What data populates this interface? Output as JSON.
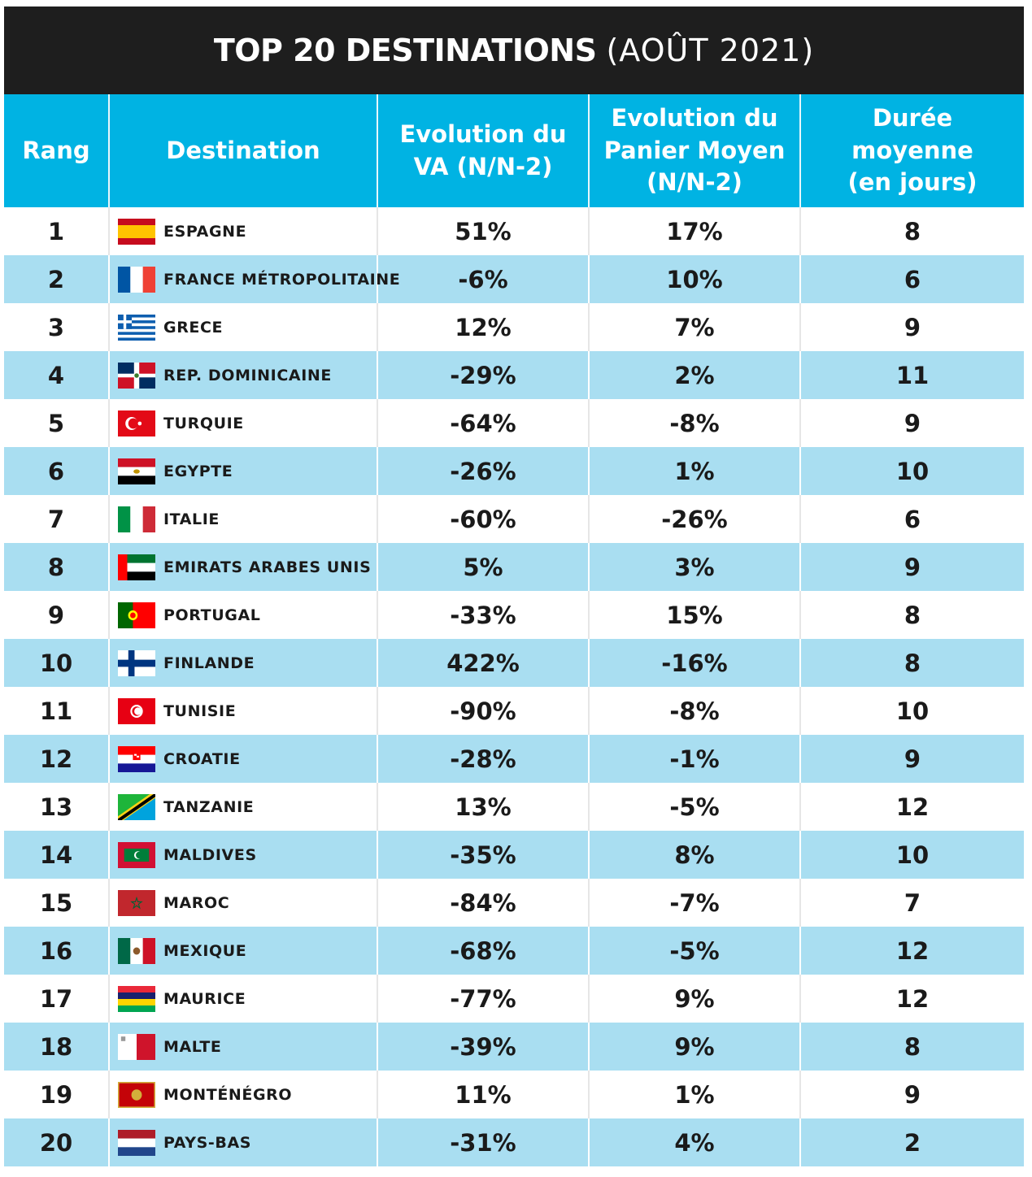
{
  "title": {
    "strong": "TOP 20 DESTINATIONS",
    "light": "(AOÛT 2021)"
  },
  "columns": [
    "Rang",
    "Destination",
    "Evolution du VA (N/N-2)",
    "Evolution du Panier Moyen (N/N-2)",
    "Durée moyenne (en jours)"
  ],
  "chart_data": {
    "type": "table",
    "title": "TOP 20 DESTINATIONS (AOÛT 2021)",
    "columns": [
      "Rang",
      "Destination",
      "Evolution du VA (N/N-2)",
      "Evolution du Panier Moyen (N/N-2)",
      "Durée moyenne (en jours)"
    ],
    "rows": [
      {
        "rang": "1",
        "destination": "ESPAGNE",
        "flag": "spain-flag-icon",
        "va": "51%",
        "panier": "17%",
        "duree": "8"
      },
      {
        "rang": "2",
        "destination": "FRANCE MÉTROPOLITAINE",
        "flag": "france-flag-icon",
        "va": "-6%",
        "panier": "10%",
        "duree": "6"
      },
      {
        "rang": "3",
        "destination": "GRECE",
        "flag": "greece-flag-icon",
        "va": "12%",
        "panier": "7%",
        "duree": "9"
      },
      {
        "rang": "4",
        "destination": "REP. DOMINICAINE",
        "flag": "dominican-republic-flag-icon",
        "va": "-29%",
        "panier": "2%",
        "duree": "11"
      },
      {
        "rang": "5",
        "destination": "TURQUIE",
        "flag": "turkey-flag-icon",
        "va": "-64%",
        "panier": "-8%",
        "duree": "9"
      },
      {
        "rang": "6",
        "destination": "EGYPTE",
        "flag": "egypt-flag-icon",
        "va": "-26%",
        "panier": "1%",
        "duree": "10"
      },
      {
        "rang": "7",
        "destination": "ITALIE",
        "flag": "italy-flag-icon",
        "va": "-60%",
        "panier": "-26%",
        "duree": "6"
      },
      {
        "rang": "8",
        "destination": "EMIRATS ARABES UNIS",
        "flag": "uae-flag-icon",
        "va": "5%",
        "panier": "3%",
        "duree": "9"
      },
      {
        "rang": "9",
        "destination": "PORTUGAL",
        "flag": "portugal-flag-icon",
        "va": "-33%",
        "panier": "15%",
        "duree": "8"
      },
      {
        "rang": "10",
        "destination": "FINLANDE",
        "flag": "finland-flag-icon",
        "va": "422%",
        "panier": "-16%",
        "duree": "8"
      },
      {
        "rang": "11",
        "destination": "TUNISIE",
        "flag": "tunisia-flag-icon",
        "va": "-90%",
        "panier": "-8%",
        "duree": "10"
      },
      {
        "rang": "12",
        "destination": "CROATIE",
        "flag": "croatia-flag-icon",
        "va": "-28%",
        "panier": "-1%",
        "duree": "9"
      },
      {
        "rang": "13",
        "destination": "TANZANIE",
        "flag": "tanzania-flag-icon",
        "va": "13%",
        "panier": "-5%",
        "duree": "12"
      },
      {
        "rang": "14",
        "destination": "MALDIVES",
        "flag": "maldives-flag-icon",
        "va": "-35%",
        "panier": "8%",
        "duree": "10"
      },
      {
        "rang": "15",
        "destination": "MAROC",
        "flag": "morocco-flag-icon",
        "va": "-84%",
        "panier": "-7%",
        "duree": "7"
      },
      {
        "rang": "16",
        "destination": "MEXIQUE",
        "flag": "mexico-flag-icon",
        "va": "-68%",
        "panier": "-5%",
        "duree": "12"
      },
      {
        "rang": "17",
        "destination": "MAURICE",
        "flag": "mauritius-flag-icon",
        "va": "-77%",
        "panier": "9%",
        "duree": "12"
      },
      {
        "rang": "18",
        "destination": "MALTE",
        "flag": "malta-flag-icon",
        "va": "-39%",
        "panier": "9%",
        "duree": "8"
      },
      {
        "rang": "19",
        "destination": "MONTÉNÉGRO",
        "flag": "montenegro-flag-icon",
        "va": "11%",
        "panier": "1%",
        "duree": "9"
      },
      {
        "rang": "20",
        "destination": "PAYS-BAS",
        "flag": "netherlands-flag-icon",
        "va": "-31%",
        "panier": "4%",
        "duree": "2"
      }
    ]
  },
  "colors": {
    "title_bg": "#1e1e1e",
    "header_bg": "#00b3e3",
    "alt_row_bg": "#a9def1"
  }
}
